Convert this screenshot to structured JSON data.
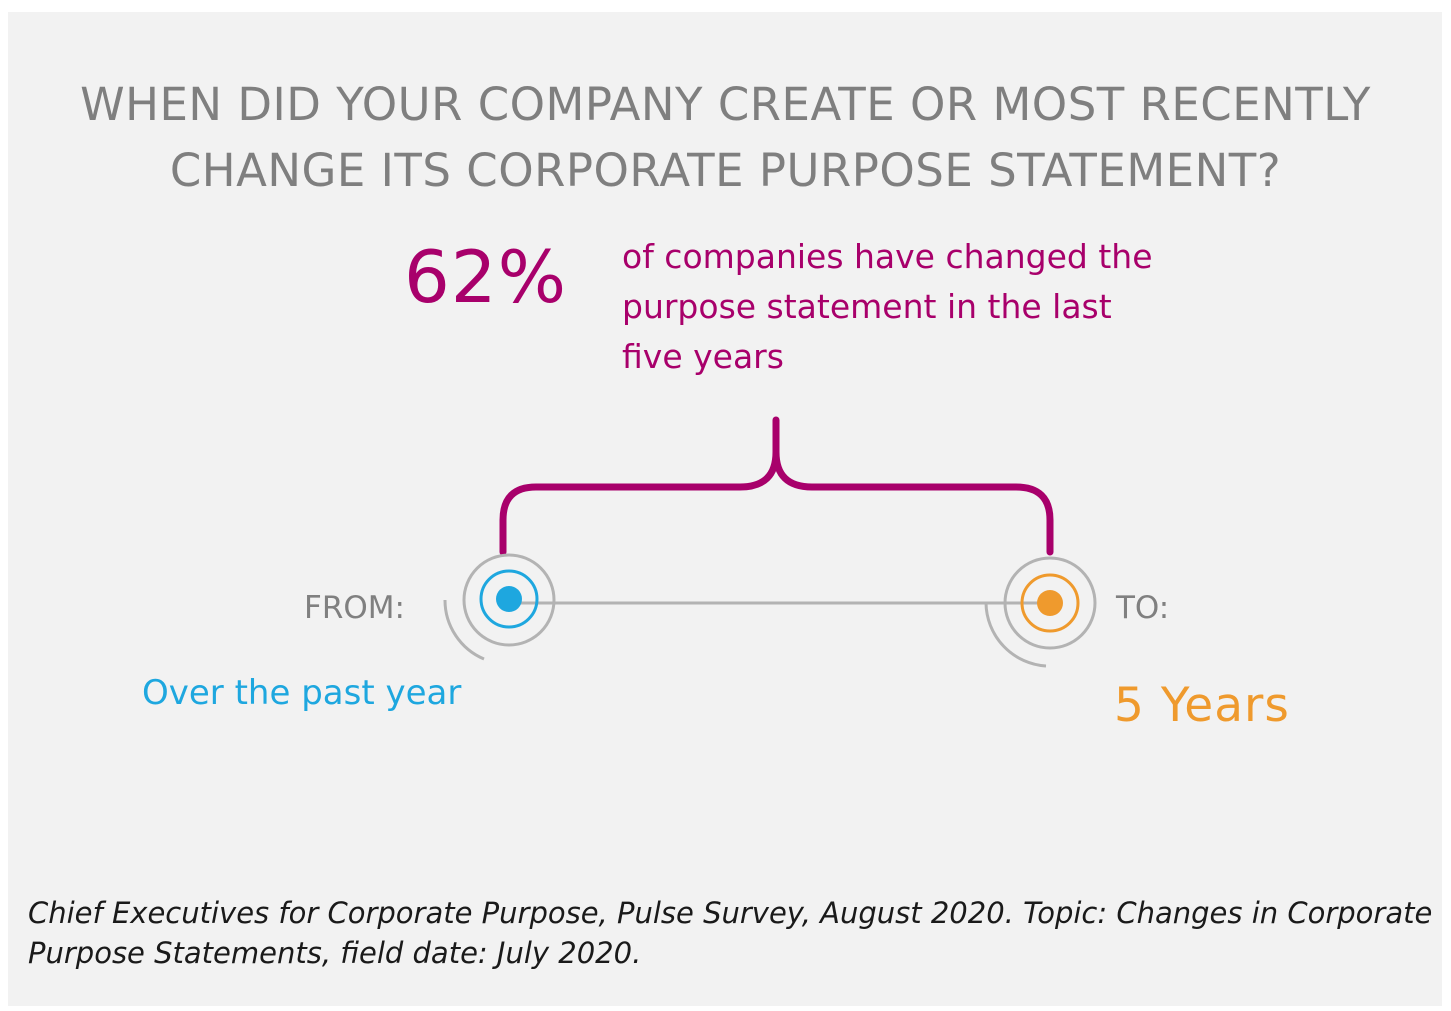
{
  "title": {
    "line1": "WHEN DID YOUR COMPANY CREATE OR MOST RECENTLY",
    "line2": "CHANGE ITS CORPORATE PURPOSE STATEMENT?"
  },
  "highlight": {
    "percent": "62%",
    "description_line1": "of companies have changed the",
    "description_line2": "purpose statement in the last",
    "description_line3": "five years"
  },
  "timeline": {
    "from_label": "FROM:",
    "from_value": "Over the past year",
    "to_label": "TO:",
    "to_value": "5 Years"
  },
  "source": {
    "line1": "Chief Executives for Corporate Purpose, Pulse Survey, August 2020. Topic: Changes in Corporate",
    "line2": "Purpose Statements, field date: July 2020."
  },
  "colors": {
    "title_gray": "#7f7f7f",
    "accent_magenta": "#a8006b",
    "from_blue": "#1ea7df",
    "to_orange": "#ef9a2d",
    "line_gray": "#b3b3b3",
    "panel_bg": "#f2f2f2"
  }
}
